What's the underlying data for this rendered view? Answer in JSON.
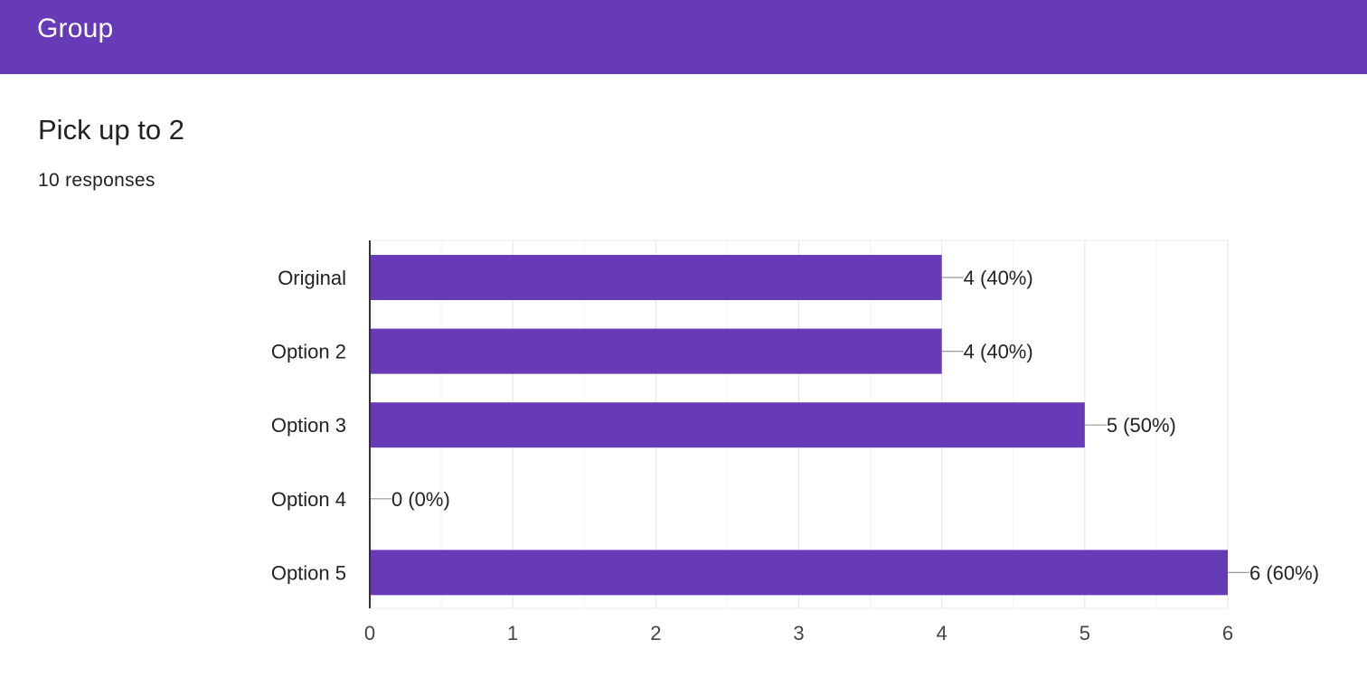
{
  "header": {
    "title": "Group"
  },
  "question": {
    "title": "Pick up to 2",
    "responses": "10 responses"
  },
  "colors": {
    "accent": "#673ab7",
    "bar": "#673ab7",
    "grid": "#ebebeb",
    "axis": "#333333",
    "leader": "#999999"
  },
  "chart_data": {
    "type": "bar",
    "orientation": "horizontal",
    "categories": [
      "Original",
      "Option 2",
      "Option 3",
      "Option 4",
      "Option 5"
    ],
    "values": [
      4,
      4,
      5,
      0,
      6
    ],
    "data_labels": [
      "4 (40%)",
      "4 (40%)",
      "5 (50%)",
      "0 (0%)",
      "6 (60%)"
    ],
    "x_ticks": [
      0,
      1,
      2,
      3,
      4,
      5,
      6
    ],
    "xlim": [
      0,
      6
    ],
    "grid": true,
    "title": "",
    "xlabel": "",
    "ylabel": ""
  }
}
